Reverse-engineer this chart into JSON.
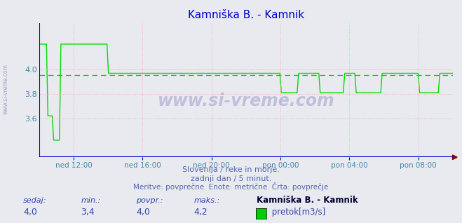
{
  "title": "Kamniška B. - Kamnik",
  "title_color": "#0000cc",
  "bg_color": "#e8eaf0",
  "plot_bg_color": "#e8eaf0",
  "line_color": "#00dd00",
  "line_width": 1.0,
  "avg_line_color": "#00bb00",
  "avg_line_value": 3.953,
  "grid_color": "#ffaaaa",
  "ylim": [
    3.28,
    4.38
  ],
  "yticks": [
    3.6,
    3.8,
    4.0
  ],
  "xtick_labels": [
    "ned 12:00",
    "ned 16:00",
    "ned 20:00",
    "pon 00:00",
    "pon 04:00",
    "pon 08:00"
  ],
  "xtick_positions": [
    0.0833,
    0.25,
    0.4167,
    0.5833,
    0.75,
    0.9167
  ],
  "tick_color": "#4488aa",
  "subtitle_line1": "Slovenija / reke in morje.",
  "subtitle_line2": "zadnji dan / 5 minut.",
  "subtitle_line3": "Meritve: povprečne  Enote: metrične  Črta: povprečje",
  "subtitle_color": "#5566aa",
  "stats_sedaj": "4,0",
  "stats_min": "3,4",
  "stats_povpr": "4,0",
  "stats_maks": "4,2",
  "stats_station": "Kamniška B. - Kamnik",
  "legend_label": " pretok[m3/s]",
  "legend_color": "#00cc00",
  "sidewatermark": "www.si-vreme.com",
  "sidewatermark_color": "#8899bb",
  "watermark": "www.si-vreme.com",
  "watermark_color": "#1a1a8c",
  "axis_blue": "#0000cc",
  "arrow_color": "#880000",
  "stat_label_color": "#3344aa",
  "stat_val_color": "#3344aa",
  "stat_bold_color": "#000033"
}
